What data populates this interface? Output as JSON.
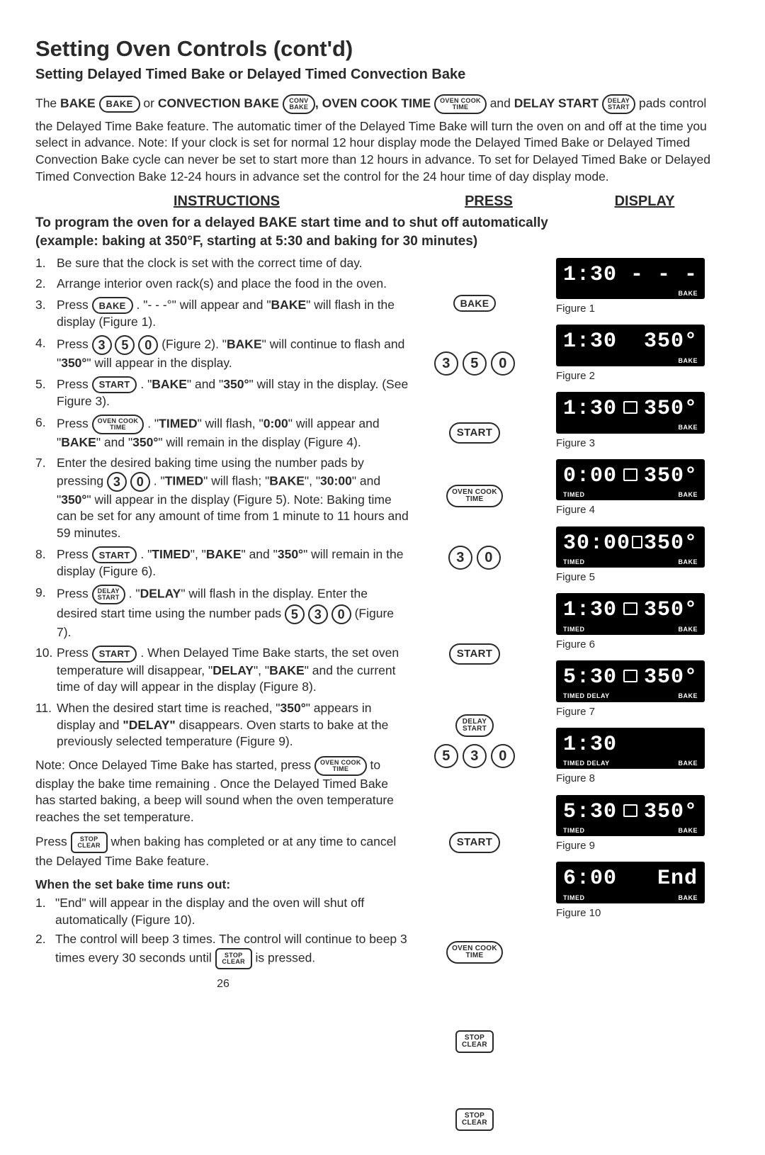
{
  "title": {
    "main": "Setting Oven Controls (cont'd)",
    "sub": "Setting Delayed Timed Bake or Delayed Timed Convection Bake"
  },
  "intro": {
    "line1_pre": "The ",
    "bake_word": "BAKE",
    "pad_bake": "BAKE",
    "or": " or ",
    "conv_word": "CONVECTION BAKE",
    "pad_conv_top": "CONV",
    "pad_conv_bot": "BAKE",
    "comma": ", ",
    "oct_word": "OVEN COOK TIME",
    "pad_oct_top": "OVEN COOK",
    "pad_oct_bot": "TIME",
    "and": "  and ",
    "delay_word": "DELAY START",
    "pad_delay_top": "DELAY",
    "pad_delay_bot": "START",
    "tail": " pads control",
    "para": "the Delayed Time Bake feature. The automatic timer of the Delayed Time Bake will turn the oven on and off at the time you select in advance. Note: If your clock is set for normal 12 hour display mode the Delayed Timed Bake or Delayed Timed Convection Bake cycle can never be set to start more than 12 hours in advance. To set for Delayed Timed Bake or Delayed Timed Convection Bake 12-24 hours in advance set the control for the 24 hour time of day display mode."
  },
  "headers": {
    "c1": "INSTRUCTIONS",
    "c2": "PRESS",
    "c3": "DISPLAY"
  },
  "prog": {
    "l1": "To program the oven for a delayed BAKE start time and to shut off automatically",
    "l2": "(example: baking at 350°F, starting at 5:30 and baking for 30 minutes)"
  },
  "steps": {
    "s1": "Be sure that the clock is set with the correct time of day.",
    "s2": "Arrange interior oven rack(s) and place the food in the oven.",
    "s3a": "Press ",
    "s3b": ". \"- - -°\" will appear and \"",
    "s3c": "\" will flash in the display (Figure 1).",
    "s4a": "Press ",
    "s4b": " (Figure 2). \"",
    "s4c": "\" will continue to flash and \"",
    "s4d": "\" will appear in the display.",
    "s5a": "Press ",
    "s5b": ". \"",
    "s5c": "\" and \"",
    "s5d": "\" will stay in the display. (See Figure 3).",
    "s6a": "Press ",
    "s6b": ". \"",
    "s6c": "\" will flash, \"",
    "s6d": "\" will appear and \"",
    "s6e": "\" and \"",
    "s6f": "\" will remain in the display (Figure 4).",
    "s7a": "Enter the desired baking time using the number pads by pressing ",
    "s7b": ". \"",
    "s7c": "\" will flash; \"",
    "s7d": "\", \"",
    "s7e": "\"  and \"",
    "s7f": "\" will appear in the display (Figure 5). Note: Baking time can be set for any amount of time from 1 minute to 11 hours and 59 minutes.",
    "s8a": "Press ",
    "s8b": ". \"",
    "s8c": "\", \"",
    "s8d": "\" and \"",
    "s8e": "\" will remain in the display (Figure 6).",
    "s9a": "Press ",
    "s9b": ". \"",
    "s9c": "\" will flash in the display. Enter the desired start time using the number pads ",
    "s9d": " (Figure 7).",
    "s10a": "Press ",
    "s10b": ". When Delayed Time Bake starts, the set oven temperature will disappear, \"",
    "s10c": "\", \"",
    "s10d": "\" and the current time of day will appear in the display (Figure 8).",
    "s11a": "When the desired start time is reached, \"",
    "s11b": "\" appears in display and ",
    "s11c": " disappears. Oven starts to bake at the previously selected temperature (Figure 9).",
    "bold": {
      "BAKE": "BAKE",
      "TIMED": "TIMED",
      "DELAY": "DELAY",
      "350": "350°",
      "000": "0:00",
      "3000": "30:00",
      "DELAYQ": "\"DELAY\""
    }
  },
  "pads": {
    "bake": "BAKE",
    "start": "START",
    "stop_top": "STOP",
    "stop_bot": "CLEAR",
    "n0": "0",
    "n3": "3",
    "n5": "5"
  },
  "note": {
    "a": "Note: Once Delayed Time Bake has started, press ",
    "b": " to display the bake time remaining . Once the Delayed Timed Bake has started baking, a beep will sound when the oven temperature reaches the set temperature.",
    "c": "Press ",
    "d": " when baking has completed or at any time to cancel the Delayed Time Bake feature."
  },
  "runout": {
    "head": "When the set bake time runs out:",
    "s1": "\"End\" will appear in the display and the oven will shut off automatically (Figure 10).",
    "s2a": "The control will beep 3 times. The control will  continue to beep 3 times every 30 seconds until ",
    "s2b": " is pressed."
  },
  "figs": {
    "f1": {
      "l": "1:30",
      "r": "- - -",
      "bl": "",
      "br": "BAKE",
      "cap": "Figure 1"
    },
    "f2": {
      "l": "1:30",
      "r": "350°",
      "bl": "",
      "br": "BAKE",
      "cap": "Figure 2"
    },
    "f3": {
      "l": "1:30",
      "box": true,
      "r": "350°",
      "bl": "",
      "br": "BAKE",
      "cap": "Figure 3"
    },
    "f4": {
      "l": "0:00",
      "box": true,
      "r": "350°",
      "bl": "TIMED",
      "br": "BAKE",
      "cap": "Figure 4"
    },
    "f5": {
      "l": "30:00",
      "box": true,
      "r": "350°",
      "bl": "TIMED",
      "br": "BAKE",
      "cap": "Figure 5"
    },
    "f6": {
      "l": "1:30",
      "box": true,
      "r": "350°",
      "bl": "TIMED",
      "br": "BAKE",
      "cap": "Figure 6"
    },
    "f7": {
      "l": "5:30",
      "box": true,
      "r": "350°",
      "bl": "TIMED  DELAY",
      "br": "BAKE",
      "cap": "Figure 7"
    },
    "f8": {
      "l": "1:30",
      "r": "",
      "bl": "TIMED  DELAY",
      "br": "BAKE",
      "cap": "Figure 8"
    },
    "f9": {
      "l": "5:30",
      "box": true,
      "r": "350°",
      "bl": "TIMED",
      "br": "BAKE",
      "cap": "Figure 9"
    },
    "f10": {
      "l": "6:00",
      "r": "End",
      "bl": "TIMED",
      "br": "BAKE",
      "cap": "Figure 10"
    }
  },
  "mid_heights": {
    "r1": 56,
    "r2": 52,
    "r3": 62,
    "r4": 54,
    "r5": 50,
    "r6": 100,
    "r7": 66,
    "r8": 86,
    "r9": 120,
    "r10": 90,
    "r11": 74,
    "r12": 0
  },
  "pagenum": "26"
}
